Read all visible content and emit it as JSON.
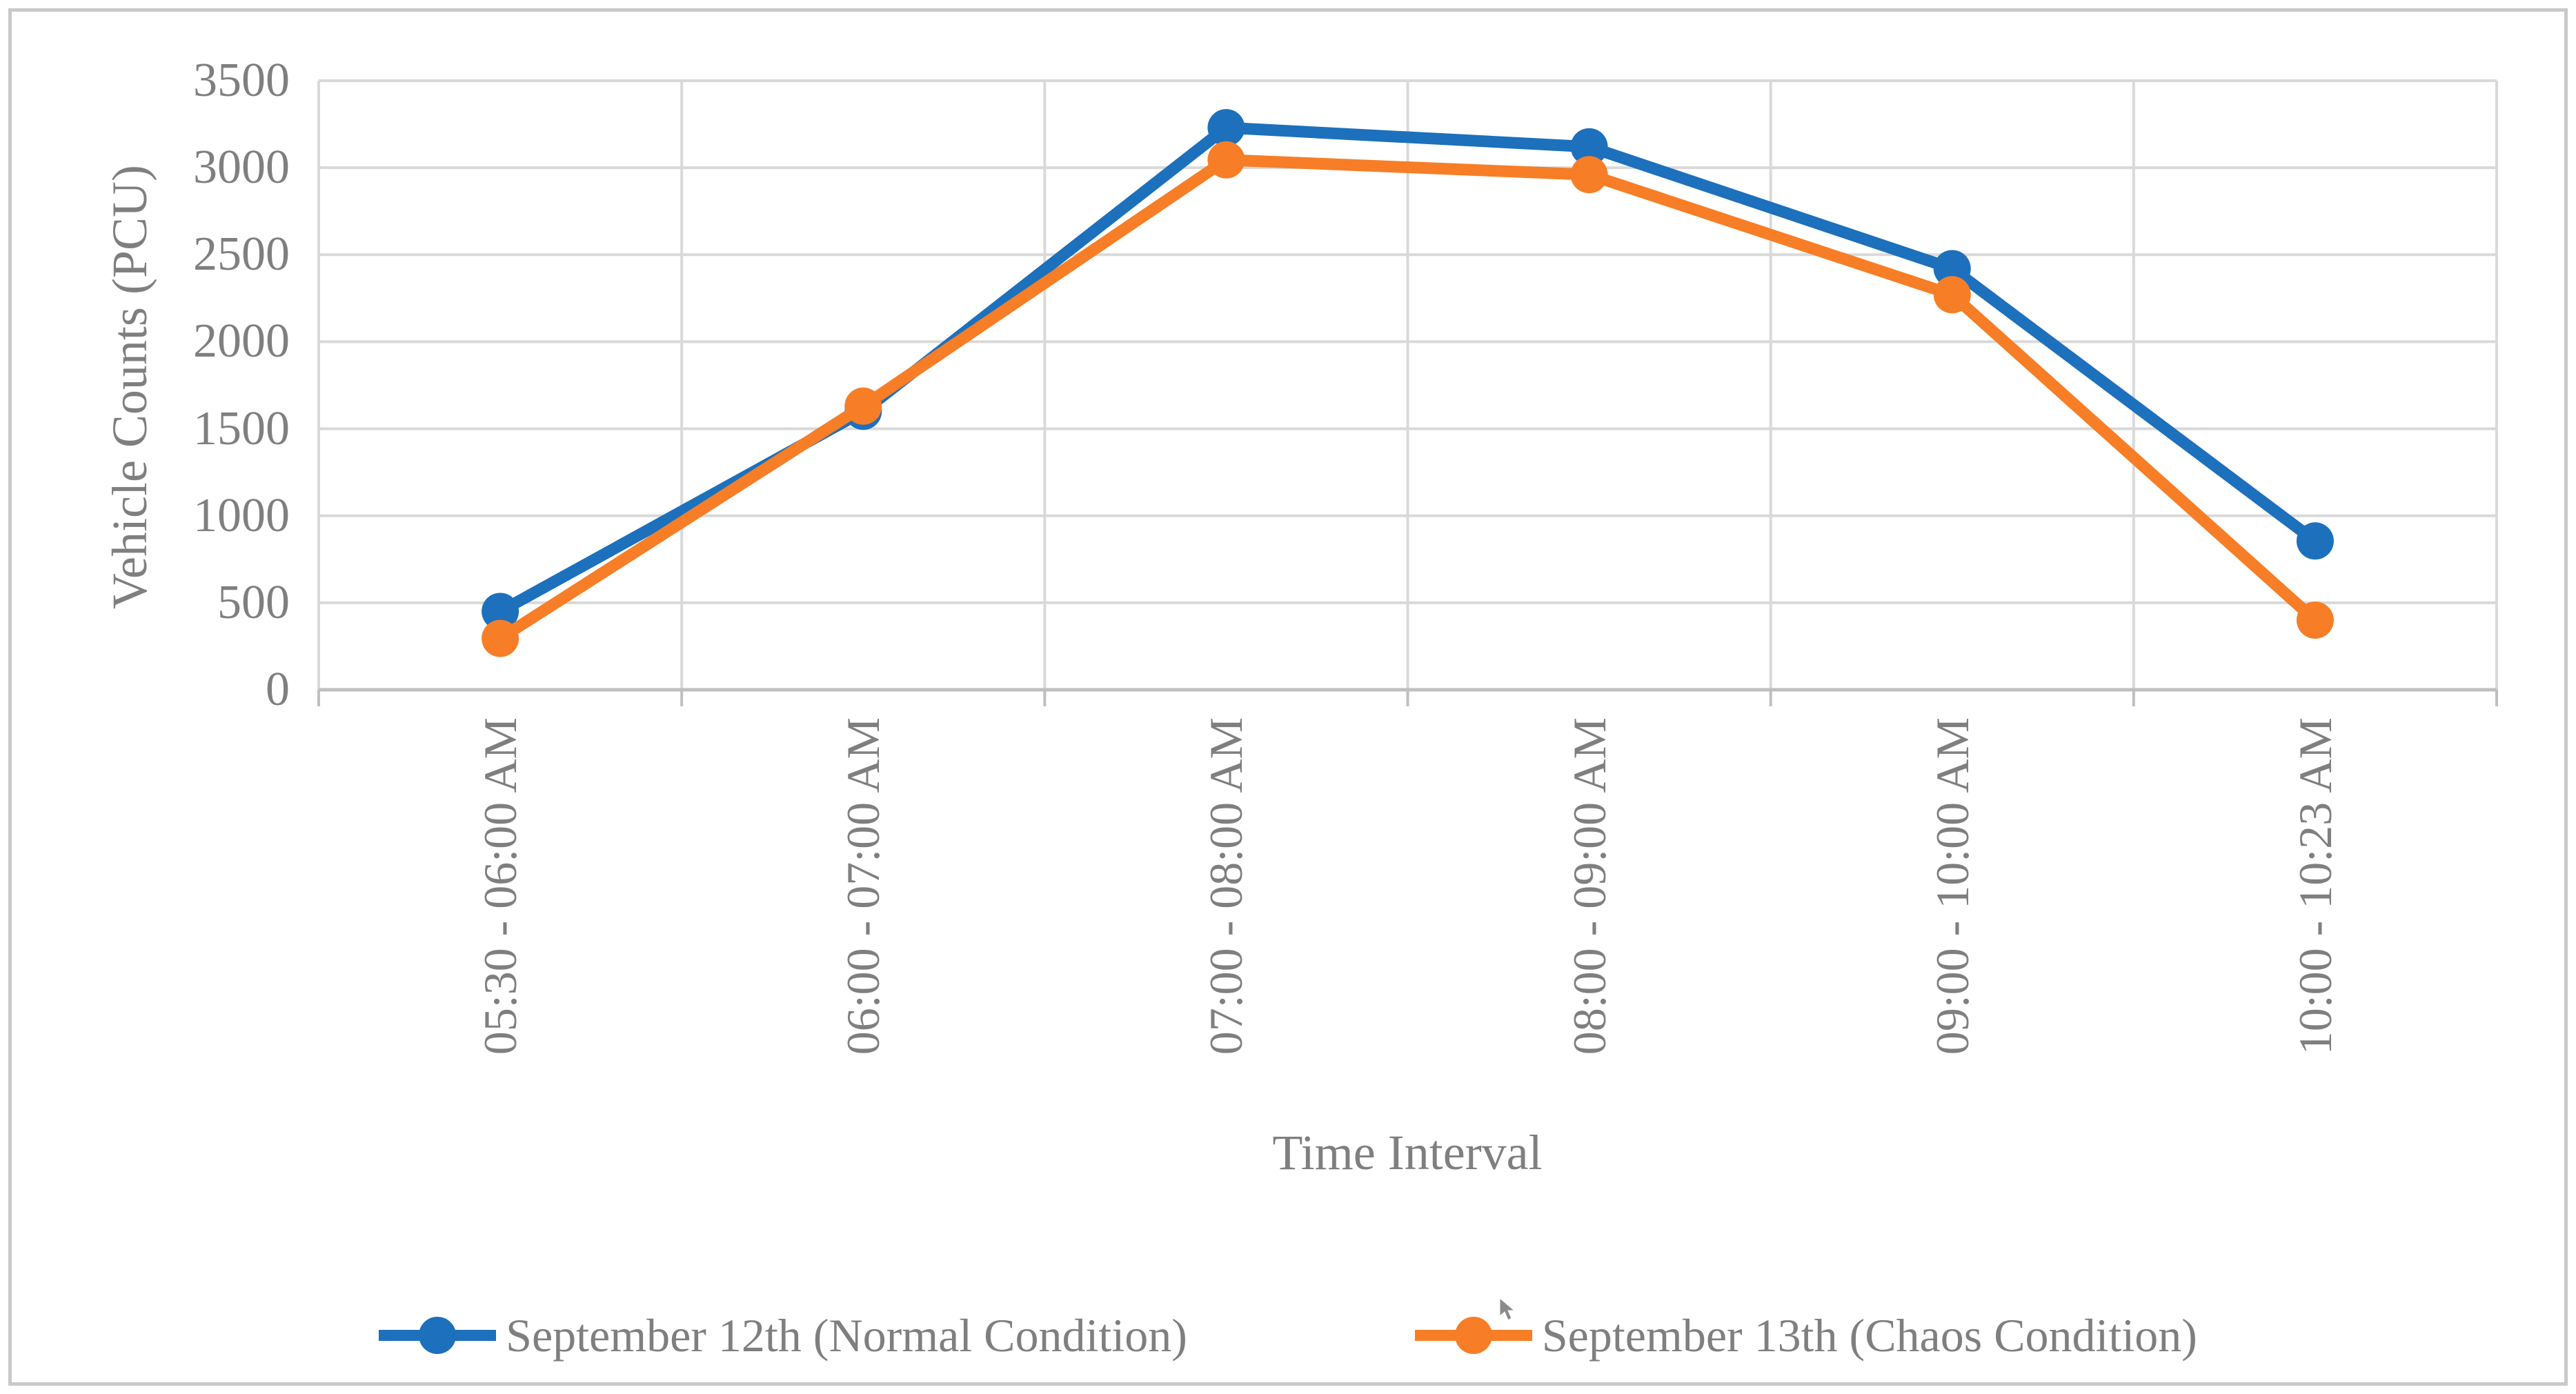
{
  "chart_data": {
    "type": "line",
    "title": "",
    "xlabel": "Time Interval",
    "ylabel": "Vehicle Counts (PCU)",
    "ylim": [
      0,
      3500
    ],
    "ytick_step": 500,
    "ytick_labels": [
      "0",
      "500",
      "1000",
      "1500",
      "2000",
      "2500",
      "3000",
      "3500"
    ],
    "grid": "on",
    "legend_position": "bottom-center",
    "categories": [
      "05:30 - 06:00 AM",
      "06:00 - 07:00 AM",
      "07:00 - 08:00 AM",
      "08:00 - 09:00 AM",
      "09:00 - 10:00 AM",
      "10:00 - 10:23 AM"
    ],
    "series": [
      {
        "name": "September 12th (Normal Condition)",
        "color": "#1D70BC",
        "values": [
          450,
          1600,
          3230,
          3120,
          2420,
          855
        ]
      },
      {
        "name": "September 13th (Chaos Condition)",
        "color": "#F77E26",
        "values": [
          295,
          1630,
          3045,
          2960,
          2270,
          400
        ]
      }
    ],
    "colors": {
      "gridline": "#D9D9D9",
      "axis_line": "#BFBFBF",
      "tick_mark": "#BFBFBF",
      "text": "#7F7F7F",
      "frame_border": "#C9C9C9",
      "background": "#FFFFFF",
      "cursor": "#8A8A8A"
    }
  }
}
